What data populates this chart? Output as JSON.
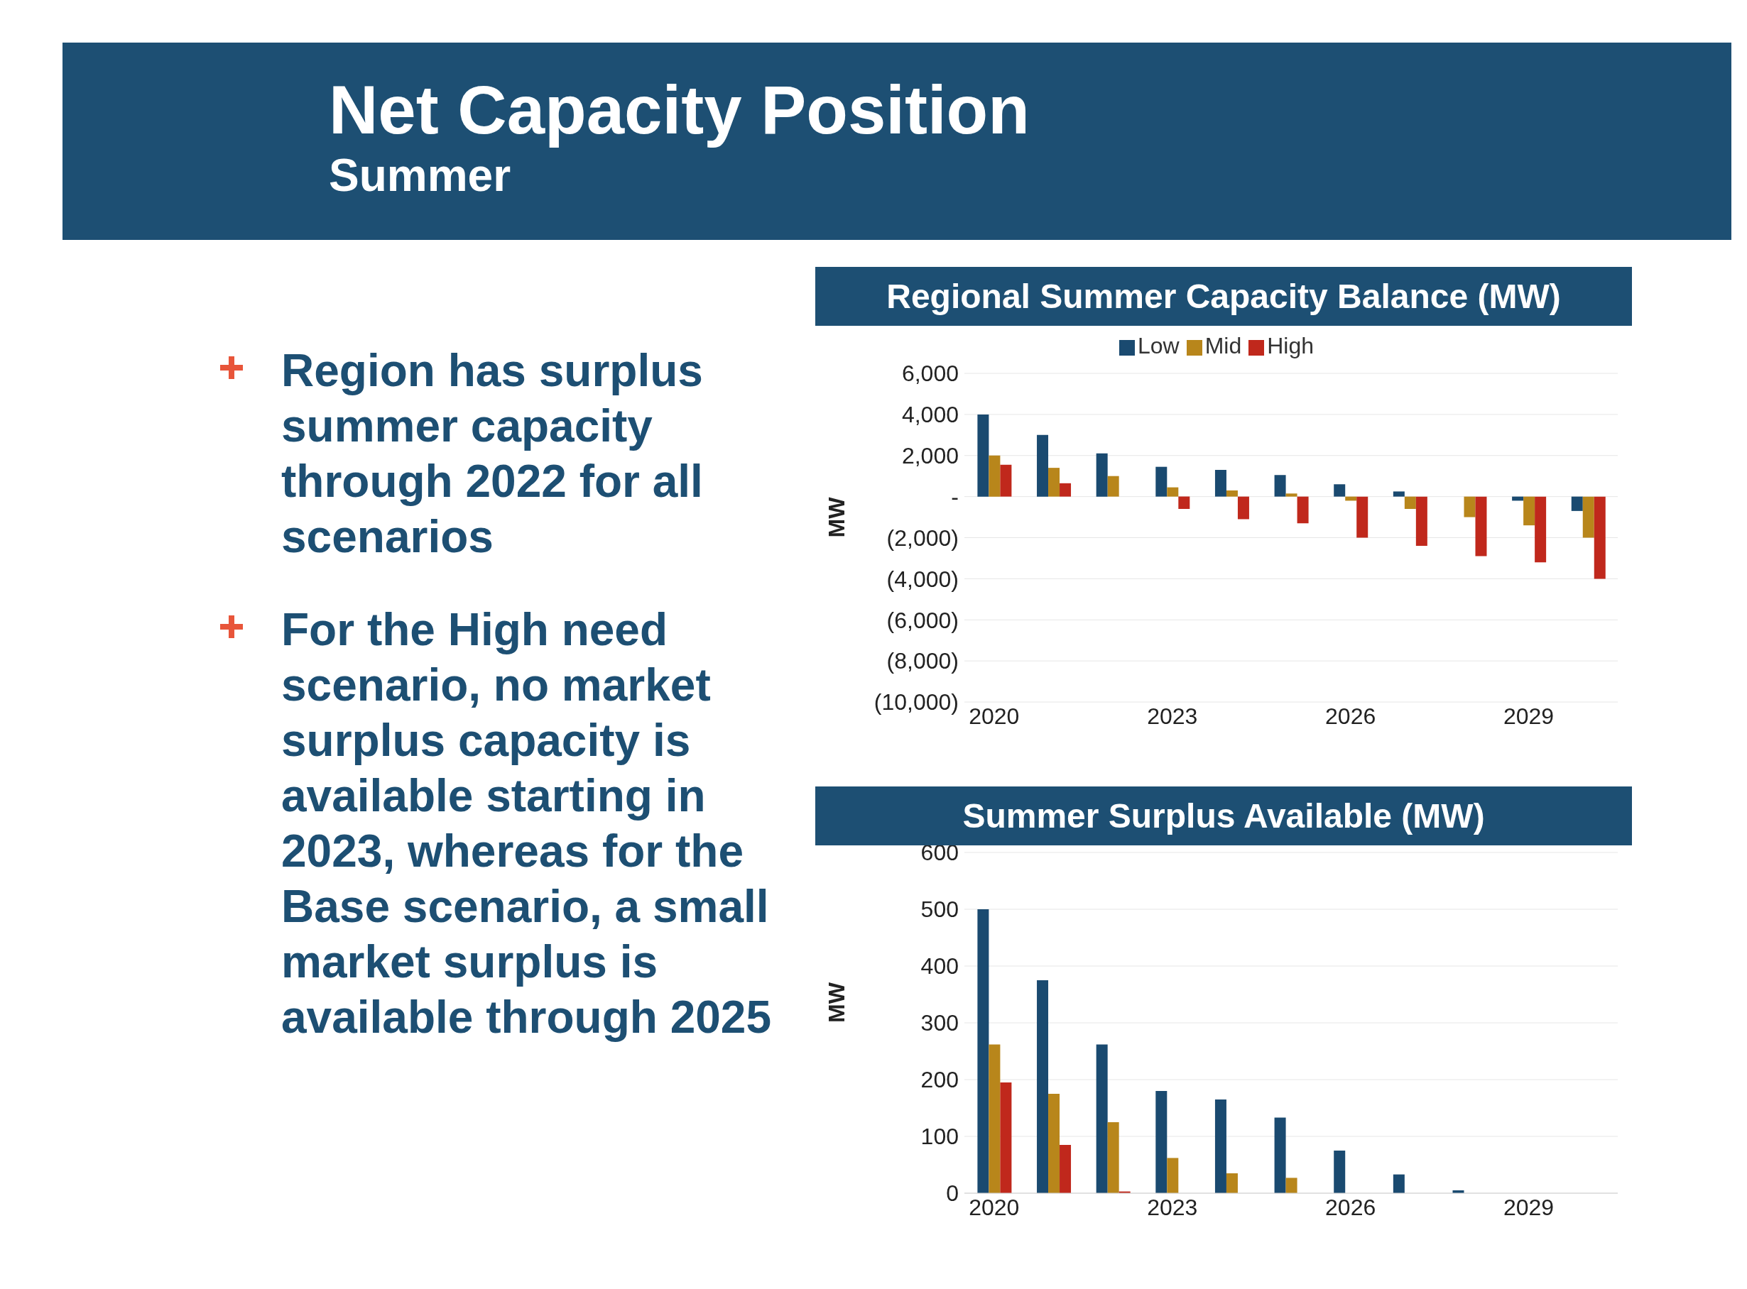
{
  "chart_data": [
    {
      "type": "bar",
      "title": "Regional Summer Capacity Balance (MW)",
      "ylabel": "MW",
      "categories": [
        "2020",
        null,
        null,
        "2023",
        null,
        null,
        "2026",
        null,
        null,
        "2029",
        null
      ],
      "series": [
        {
          "name": "Low",
          "color": "#1a4a70",
          "values": [
            4000,
            3000,
            2100,
            1450,
            1300,
            1050,
            600,
            250,
            0,
            -200,
            -700
          ]
        },
        {
          "name": "Mid",
          "color": "#b8861b",
          "values": [
            2000,
            1400,
            1000,
            450,
            300,
            150,
            -200,
            -600,
            -1000,
            -1400,
            -2000
          ]
        },
        {
          "name": "High",
          "color": "#c0281c",
          "values": [
            1550,
            650,
            0,
            -600,
            -1100,
            -1300,
            -2000,
            -2400,
            -2900,
            -3200,
            -4000
          ]
        }
      ],
      "ylim": [
        -10000,
        6000
      ],
      "yticks": [
        {
          "value": 6000,
          "label": "6,000"
        },
        {
          "value": 4000,
          "label": "4,000"
        },
        {
          "value": 2000,
          "label": "2,000"
        },
        {
          "value": 0,
          "label": "-"
        },
        {
          "value": -2000,
          "label": "(2,000)"
        },
        {
          "value": -4000,
          "label": "(4,000)"
        },
        {
          "value": -6000,
          "label": "(6,000)"
        },
        {
          "value": -8000,
          "label": "(8,000)"
        },
        {
          "value": -10000,
          "label": "(10,000)"
        }
      ],
      "grid": "y",
      "legend": "top",
      "annotations": [
        "Net Capacity Position",
        "Summer",
        "Region has surplus summer capacity through 2022 for all scenarios",
        "For the High need scenario, no market surplus capacity is available starting in 2023, whereas for the Base scenario, a small market surplus is available through 2025"
      ]
    },
    {
      "type": "bar",
      "title": "Summer Surplus Available (MW)",
      "ylabel": "MW",
      "categories": [
        "2020",
        null,
        null,
        "2023",
        null,
        null,
        "2026",
        null,
        null,
        "2029",
        null
      ],
      "series": [
        {
          "color": "#1a4a70",
          "values": [
            500,
            375,
            262,
            180,
            165,
            133,
            75,
            33,
            5,
            0,
            0
          ]
        },
        {
          "color": "#b8861b",
          "values": [
            262,
            175,
            125,
            62,
            35,
            27,
            0,
            0,
            0,
            0,
            0
          ]
        },
        {
          "color": "#c0281c",
          "values": [
            195,
            85,
            3,
            0,
            0,
            0,
            0,
            0,
            0,
            0,
            0
          ]
        }
      ],
      "ylim": [
        0,
        600
      ],
      "yticks": [
        0,
        100,
        200,
        300,
        400,
        500,
        600
      ],
      "grid": "y",
      "legend": false
    }
  ]
}
